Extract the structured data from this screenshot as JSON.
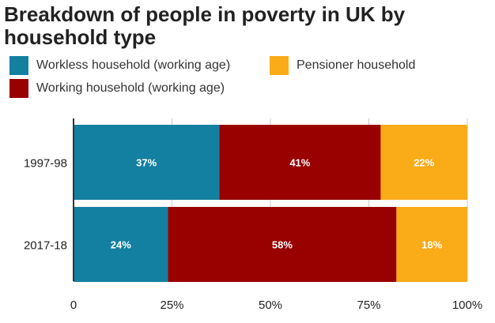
{
  "chart_data": {
    "type": "bar",
    "orientation": "horizontal",
    "stacked": true,
    "title": "Breakdown of people in poverty in UK by household type",
    "categories": [
      "1997-98",
      "2017-18"
    ],
    "series": [
      {
        "name": "Workless household (working age)",
        "color": "#1380A1",
        "values": [
          37,
          24
        ],
        "labels": [
          "37%",
          "24%"
        ]
      },
      {
        "name": "Working household (working age)",
        "color": "#990000",
        "values": [
          41,
          58
        ],
        "labels": [
          "41%",
          "58%"
        ]
      },
      {
        "name": "Pensioner household",
        "color": "#FAAB18",
        "values": [
          22,
          18
        ],
        "labels": [
          "22%",
          "18%"
        ]
      }
    ],
    "xlim": [
      0,
      100
    ],
    "xticks": [
      0,
      25,
      50,
      75,
      100
    ],
    "xtick_labels": [
      "0",
      "25%",
      "50%",
      "75%",
      "100%"
    ],
    "grid": true,
    "legend_position": "top-left"
  }
}
